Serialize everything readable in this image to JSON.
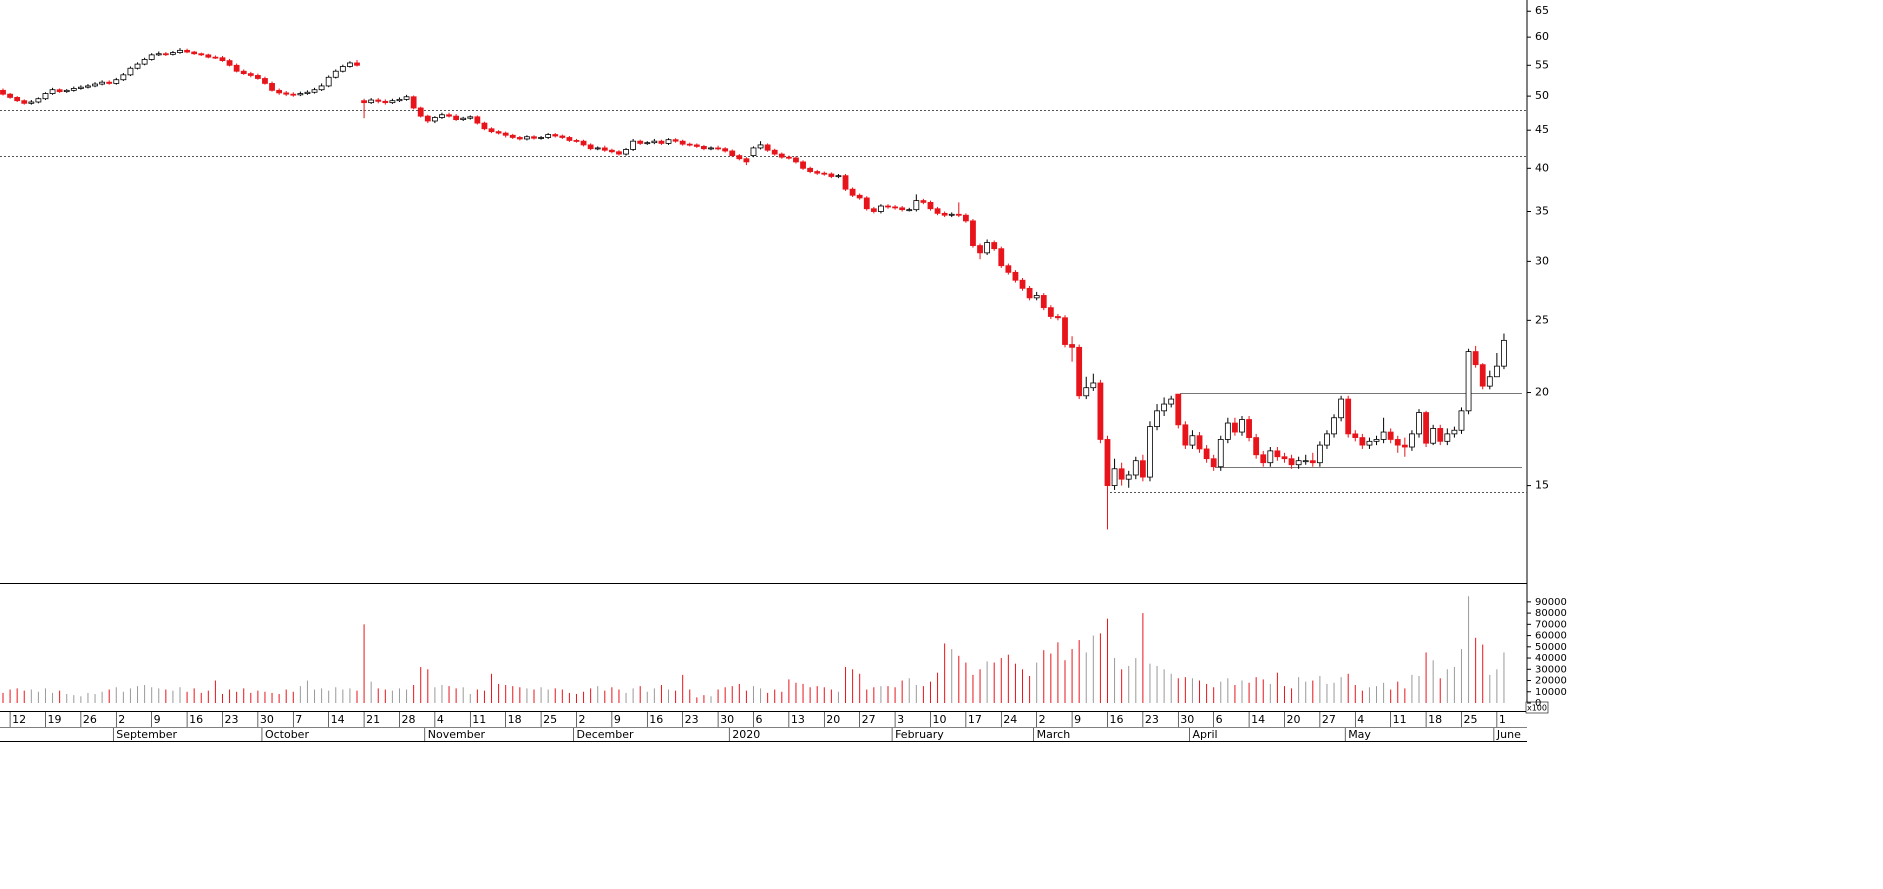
{
  "chart_data": {
    "type": "candlestick",
    "log_scale": true,
    "up_color": "#ffffff",
    "down_color": "#e8141b",
    "volume_up_color": "#9a9a9a",
    "ylim": [
      11.1,
      67.3
    ],
    "yticks": [
      15,
      20,
      25,
      30,
      35,
      40,
      45,
      50,
      55,
      60,
      65
    ],
    "volume_ylim": [
      0,
      105000
    ],
    "volume_yticks": [
      0,
      10000,
      20000,
      30000,
      40000,
      50000,
      60000,
      70000,
      80000,
      90000
    ],
    "volume_unit_label": "x100",
    "levels": [
      {
        "value": 47.9,
        "style": "dotted"
      },
      {
        "value": 41.6,
        "style": "dotted"
      },
      {
        "value": 14.7,
        "style": "dotted"
      },
      {
        "value": 19.95,
        "style": "solid"
      },
      {
        "value": 15.9,
        "style": "solid"
      }
    ],
    "categories": [
      null,
      "12",
      null,
      null,
      null,
      null,
      "19",
      null,
      null,
      null,
      null,
      "26",
      null,
      null,
      null,
      null,
      "2",
      null,
      null,
      null,
      null,
      "9",
      null,
      null,
      null,
      null,
      "16",
      null,
      null,
      null,
      null,
      "23",
      null,
      null,
      null,
      null,
      "30",
      null,
      null,
      null,
      null,
      "7",
      null,
      null,
      null,
      null,
      "14",
      null,
      null,
      null,
      null,
      "21",
      null,
      null,
      null,
      null,
      "28",
      null,
      null,
      null,
      null,
      "4",
      null,
      null,
      null,
      null,
      "11",
      null,
      null,
      null,
      null,
      "18",
      null,
      null,
      null,
      null,
      "25",
      null,
      null,
      null,
      null,
      "2",
      null,
      null,
      null,
      null,
      "9",
      null,
      null,
      null,
      null,
      "16",
      null,
      null,
      null,
      null,
      "23",
      null,
      null,
      null,
      null,
      "30",
      null,
      null,
      null,
      null,
      "6",
      null,
      null,
      null,
      null,
      "13",
      null,
      null,
      null,
      null,
      "20",
      null,
      null,
      null,
      null,
      "27",
      null,
      null,
      null,
      null,
      "3",
      null,
      null,
      null,
      null,
      "10",
      null,
      null,
      null,
      null,
      "17",
      null,
      null,
      null,
      null,
      "24",
      null,
      null,
      null,
      null,
      "2",
      null,
      null,
      null,
      null,
      "9",
      null,
      null,
      null,
      null,
      "16",
      null,
      null,
      null,
      null,
      "23",
      null,
      null,
      null,
      null,
      "30",
      null,
      null,
      null,
      null,
      "6",
      null,
      null,
      null,
      null,
      "14",
      null,
      null,
      null,
      null,
      "20",
      null,
      null,
      null,
      null,
      "27",
      null,
      null,
      null,
      null,
      "4",
      null,
      null,
      null,
      null,
      "11",
      null,
      null,
      null,
      null,
      "18",
      null,
      null,
      null,
      null,
      "25",
      null,
      null,
      null,
      null,
      "1",
      null
    ],
    "months": [
      null,
      null,
      null,
      null,
      null,
      null,
      null,
      null,
      null,
      null,
      null,
      null,
      null,
      null,
      null,
      null,
      "September",
      null,
      null,
      null,
      null,
      null,
      null,
      null,
      null,
      null,
      null,
      null,
      null,
      null,
      null,
      null,
      null,
      null,
      null,
      null,
      null,
      "October",
      null,
      null,
      null,
      null,
      null,
      null,
      null,
      null,
      null,
      null,
      null,
      null,
      null,
      null,
      null,
      null,
      null,
      null,
      null,
      null,
      null,
      null,
      "November",
      null,
      null,
      null,
      null,
      null,
      null,
      null,
      null,
      null,
      null,
      null,
      null,
      null,
      null,
      null,
      null,
      null,
      null,
      null,
      null,
      "December",
      null,
      null,
      null,
      null,
      null,
      null,
      null,
      null,
      null,
      null,
      null,
      null,
      null,
      null,
      null,
      null,
      null,
      null,
      null,
      null,
      null,
      "2020",
      null,
      null,
      null,
      null,
      null,
      null,
      null,
      null,
      null,
      null,
      null,
      null,
      null,
      null,
      null,
      null,
      null,
      null,
      null,
      null,
      null,
      null,
      "February",
      null,
      null,
      null,
      null,
      null,
      null,
      null,
      null,
      null,
      null,
      null,
      null,
      null,
      null,
      null,
      null,
      null,
      null,
      null,
      "March",
      null,
      null,
      null,
      null,
      null,
      null,
      null,
      null,
      null,
      null,
      null,
      null,
      null,
      null,
      null,
      null,
      null,
      null,
      null,
      null,
      null,
      "April",
      null,
      null,
      null,
      null,
      null,
      null,
      null,
      null,
      null,
      null,
      null,
      null,
      null,
      null,
      null,
      null,
      null,
      null,
      null,
      null,
      null,
      "May",
      null,
      null,
      null,
      null,
      null,
      null,
      null,
      null,
      null,
      null,
      null,
      null,
      null,
      null,
      null,
      null,
      null,
      null,
      null,
      null,
      "June",
      null
    ],
    "open": [
      50.9,
      50.3,
      49.8,
      49.3,
      48.9,
      49.1,
      49.6,
      50.4,
      51.0,
      50.7,
      50.9,
      51.2,
      51.4,
      51.6,
      51.9,
      52.2,
      52.0,
      52.6,
      53.4,
      54.5,
      55.2,
      56.0,
      56.8,
      57.0,
      56.9,
      57.2,
      57.6,
      57.3,
      57.0,
      56.8,
      56.4,
      56.3,
      55.8,
      55.0,
      54.0,
      53.6,
      53.3,
      52.8,
      52.0,
      50.9,
      50.5,
      50.3,
      50.2,
      50.4,
      50.6,
      51.0,
      51.6,
      53.0,
      54.0,
      54.8,
      55.4,
      49.3,
      49.0,
      49.4,
      49.2,
      49.0,
      49.3,
      49.5,
      49.9,
      48.2,
      47.0,
      46.3,
      46.8,
      47.2,
      47.0,
      46.5,
      46.7,
      46.9,
      46.0,
      45.2,
      44.8,
      44.6,
      44.3,
      44.0,
      43.8,
      44.1,
      43.9,
      44.0,
      44.4,
      44.2,
      44.0,
      43.6,
      43.5,
      43.0,
      42.5,
      42.6,
      42.3,
      42.1,
      41.8,
      42.4,
      43.5,
      43.2,
      43.3,
      43.5,
      43.2,
      43.7,
      43.5,
      43.1,
      43.0,
      42.8,
      42.5,
      42.6,
      42.5,
      42.2,
      41.6,
      41.2,
      41.6,
      42.6,
      43.0,
      42.3,
      41.8,
      41.4,
      41.3,
      40.8,
      40.0,
      39.6,
      39.4,
      39.3,
      39.0,
      39.1,
      37.5,
      36.8,
      36.5,
      35.3,
      35.0,
      35.6,
      35.5,
      35.4,
      35.2,
      35.2,
      36.2,
      36.0,
      35.3,
      34.8,
      34.6,
      34.7,
      34.6,
      34.0,
      31.5,
      30.8,
      31.8,
      31.2,
      29.6,
      29.0,
      28.3,
      27.6,
      26.8,
      27.0,
      26.0,
      25.3,
      25.2,
      23.2,
      23.0,
      19.8,
      20.3,
      20.6,
      17.3,
      15.0,
      15.8,
      15.3,
      15.5,
      16.2,
      15.4,
      18.0,
      18.9,
      19.3,
      19.9,
      18.1,
      17.0,
      17.5,
      16.8,
      16.3,
      15.9,
      17.3,
      18.2,
      17.7,
      18.4,
      17.4,
      16.5,
      16.1,
      16.7,
      16.4,
      16.3,
      16.0,
      16.2,
      16.2,
      16.1,
      17.0,
      17.6,
      18.5,
      19.6,
      17.6,
      17.4,
      17.0,
      17.2,
      17.3,
      17.7,
      17.3,
      17.0,
      16.9,
      17.6,
      18.8,
      17.1,
      17.9,
      17.2,
      17.6,
      17.8,
      18.9,
      22.7,
      21.8,
      20.4,
      21.0,
      21.7
    ],
    "high": [
      51.2,
      50.5,
      50.0,
      49.5,
      49.4,
      49.8,
      50.6,
      51.3,
      51.2,
      51.1,
      51.5,
      51.7,
      51.9,
      52.2,
      52.5,
      52.5,
      52.9,
      53.7,
      54.8,
      55.5,
      56.3,
      57.1,
      57.4,
      57.3,
      57.5,
      58.0,
      57.9,
      57.5,
      57.2,
      57.0,
      56.7,
      56.6,
      56.1,
      55.3,
      54.3,
      53.9,
      53.6,
      53.1,
      52.3,
      51.2,
      50.8,
      50.6,
      50.7,
      50.9,
      51.3,
      52.0,
      53.3,
      54.3,
      55.1,
      55.7,
      55.9,
      49.6,
      49.7,
      49.7,
      49.5,
      49.6,
      49.8,
      50.2,
      50.1,
      48.4,
      47.2,
      47.0,
      47.5,
      47.5,
      47.3,
      46.9,
      47.1,
      47.1,
      46.2,
      45.4,
      45.0,
      44.8,
      44.5,
      44.2,
      44.3,
      44.3,
      44.2,
      44.6,
      44.6,
      44.4,
      44.2,
      43.8,
      43.7,
      43.2,
      42.8,
      42.9,
      42.5,
      42.3,
      42.6,
      43.8,
      43.7,
      43.5,
      43.8,
      43.7,
      43.9,
      43.9,
      43.7,
      43.3,
      43.2,
      43.0,
      42.8,
      42.9,
      42.7,
      42.4,
      41.8,
      41.4,
      42.8,
      43.5,
      43.2,
      42.5,
      42.0,
      41.6,
      41.5,
      41.0,
      40.2,
      39.8,
      39.6,
      39.5,
      39.3,
      39.3,
      37.7,
      37.0,
      36.7,
      35.5,
      35.8,
      35.8,
      35.7,
      35.6,
      35.4,
      36.9,
      36.4,
      36.2,
      35.5,
      35.0,
      34.9,
      36.0,
      34.8,
      34.2,
      31.7,
      32.1,
      32.0,
      31.4,
      29.8,
      29.2,
      28.5,
      27.8,
      27.3,
      27.2,
      26.2,
      25.5,
      25.4,
      23.8,
      23.2,
      21.0,
      21.2,
      20.8,
      17.5,
      16.3,
      16.1,
      15.7,
      16.4,
      16.5,
      18.3,
      19.3,
      19.7,
      19.8,
      19.9,
      18.3,
      17.8,
      17.7,
      17.0,
      16.5,
      17.5,
      18.5,
      18.5,
      18.6,
      18.6,
      17.6,
      16.7,
      16.9,
      16.9,
      16.6,
      16.5,
      16.4,
      16.5,
      16.6,
      17.2,
      17.8,
      18.7,
      19.8,
      19.8,
      17.8,
      17.6,
      17.4,
      17.5,
      18.5,
      17.9,
      17.5,
      17.4,
      17.8,
      19.0,
      18.9,
      18.1,
      18.1,
      17.9,
      18.0,
      19.1,
      22.9,
      23.1,
      21.9,
      21.4,
      22.6,
      24.0
    ],
    "low": [
      50.1,
      49.6,
      49.1,
      48.7,
      48.7,
      48.9,
      49.4,
      50.2,
      50.5,
      50.5,
      50.7,
      51.0,
      51.2,
      51.4,
      51.7,
      51.8,
      51.8,
      52.4,
      53.2,
      54.3,
      55.0,
      55.8,
      56.6,
      56.6,
      56.7,
      57.0,
      57.1,
      56.8,
      56.6,
      56.2,
      56.1,
      55.6,
      54.8,
      53.8,
      53.4,
      53.0,
      52.6,
      51.8,
      50.7,
      50.2,
      50.0,
      49.9,
      50.0,
      50.2,
      50.4,
      50.8,
      51.4,
      52.8,
      53.8,
      54.6,
      54.8,
      46.7,
      48.8,
      48.9,
      48.7,
      48.8,
      49.1,
      49.3,
      48.0,
      46.8,
      46.0,
      46.0,
      46.6,
      46.8,
      46.3,
      46.3,
      46.5,
      45.8,
      45.0,
      44.6,
      44.4,
      44.0,
      43.8,
      43.6,
      43.6,
      43.7,
      43.7,
      43.8,
      44.0,
      43.8,
      43.4,
      43.3,
      42.8,
      42.3,
      42.3,
      42.1,
      41.9,
      41.6,
      41.6,
      42.2,
      43.0,
      43.0,
      43.1,
      43.0,
      43.0,
      43.3,
      42.9,
      42.8,
      42.6,
      42.3,
      42.3,
      42.3,
      42.0,
      41.4,
      41.0,
      40.4,
      41.4,
      42.4,
      42.1,
      41.6,
      41.2,
      41.1,
      40.6,
      39.8,
      39.4,
      39.2,
      39.1,
      38.8,
      38.8,
      37.3,
      36.6,
      36.3,
      35.1,
      34.8,
      34.8,
      35.3,
      35.2,
      35.0,
      35.0,
      35.0,
      35.8,
      35.1,
      34.6,
      34.4,
      34.4,
      34.4,
      33.8,
      31.3,
      30.2,
      30.6,
      31.0,
      29.4,
      28.8,
      28.1,
      27.4,
      26.6,
      26.6,
      25.8,
      25.1,
      25.0,
      23.0,
      22.0,
      19.6,
      19.6,
      20.1,
      17.1,
      13.1,
      14.8,
      15.0,
      14.9,
      15.3,
      15.2,
      15.2,
      17.8,
      18.6,
      19.1,
      17.9,
      16.8,
      16.8,
      16.6,
      16.1,
      15.7,
      15.7,
      17.1,
      17.5,
      17.5,
      17.2,
      16.3,
      15.9,
      15.9,
      16.2,
      16.1,
      15.8,
      15.8,
      16.0,
      15.9,
      15.9,
      16.8,
      17.4,
      18.3,
      17.4,
      17.2,
      16.8,
      16.8,
      17.0,
      17.1,
      17.1,
      16.6,
      16.4,
      16.7,
      17.4,
      16.9,
      17.0,
      17.0,
      17.0,
      17.4,
      17.6,
      18.7,
      21.6,
      20.2,
      20.2,
      21.0,
      21.5
    ],
    "close": [
      50.3,
      49.8,
      49.3,
      48.9,
      49.1,
      49.6,
      50.4,
      51.0,
      50.7,
      50.9,
      51.2,
      51.4,
      51.6,
      51.9,
      52.2,
      52.0,
      52.6,
      53.4,
      54.5,
      55.2,
      56.0,
      56.8,
      57.0,
      56.9,
      57.2,
      57.6,
      57.3,
      57.0,
      56.8,
      56.4,
      56.3,
      55.8,
      55.0,
      54.0,
      53.6,
      53.3,
      52.8,
      52.0,
      50.9,
      50.5,
      50.3,
      50.2,
      50.4,
      50.6,
      51.0,
      51.6,
      53.0,
      54.0,
      54.8,
      55.4,
      55.0,
      49.0,
      49.4,
      49.2,
      49.0,
      49.3,
      49.5,
      49.9,
      48.2,
      47.0,
      46.3,
      46.8,
      47.2,
      47.0,
      46.5,
      46.7,
      46.9,
      46.0,
      45.2,
      44.8,
      44.6,
      44.3,
      44.0,
      43.8,
      44.1,
      43.9,
      44.0,
      44.4,
      44.2,
      44.0,
      43.6,
      43.5,
      43.0,
      42.5,
      42.6,
      42.3,
      42.1,
      41.8,
      42.4,
      43.5,
      43.2,
      43.3,
      43.5,
      43.2,
      43.7,
      43.5,
      43.1,
      43.0,
      42.8,
      42.5,
      42.6,
      42.5,
      42.2,
      41.6,
      41.2,
      40.8,
      42.6,
      43.0,
      42.3,
      41.8,
      41.4,
      41.3,
      40.8,
      40.0,
      39.6,
      39.4,
      39.3,
      39.0,
      39.1,
      37.5,
      36.8,
      36.5,
      35.3,
      35.0,
      35.6,
      35.5,
      35.4,
      35.2,
      35.2,
      36.2,
      36.0,
      35.3,
      34.8,
      34.6,
      34.7,
      34.6,
      34.0,
      31.5,
      30.8,
      31.8,
      31.2,
      29.6,
      29.0,
      28.3,
      27.6,
      26.8,
      27.0,
      26.0,
      25.3,
      25.2,
      23.2,
      23.0,
      19.8,
      20.3,
      20.6,
      17.3,
      15.0,
      15.8,
      15.3,
      15.5,
      16.2,
      15.4,
      18.0,
      18.9,
      19.3,
      19.6,
      18.1,
      17.0,
      17.5,
      16.8,
      16.3,
      15.9,
      17.3,
      18.2,
      17.7,
      18.4,
      17.4,
      16.5,
      16.1,
      16.7,
      16.4,
      16.3,
      16.0,
      16.2,
      16.2,
      16.1,
      17.0,
      17.6,
      18.5,
      19.6,
      17.6,
      17.4,
      17.0,
      17.2,
      17.3,
      17.7,
      17.3,
      17.0,
      16.9,
      17.6,
      18.8,
      17.1,
      17.9,
      17.2,
      17.6,
      17.8,
      18.9,
      22.7,
      21.8,
      20.4,
      21.0,
      21.7,
      23.5
    ],
    "volume": [
      9000,
      12000,
      13000,
      11000,
      12000,
      10000,
      13000,
      9000,
      11000,
      8000,
      7000,
      6000,
      9000,
      8000,
      10000,
      12000,
      14000,
      10000,
      13000,
      15000,
      16000,
      14000,
      13000,
      12000,
      11000,
      14000,
      10000,
      13000,
      9000,
      11000,
      20000,
      8000,
      12000,
      10000,
      13000,
      9000,
      11000,
      10000,
      9000,
      8000,
      12000,
      10000,
      15000,
      20000,
      12000,
      13000,
      11000,
      14000,
      12000,
      13000,
      11000,
      70000,
      19000,
      13000,
      12000,
      11000,
      13000,
      12000,
      16000,
      32000,
      30000,
      14000,
      16000,
      15000,
      13000,
      14000,
      8000,
      12000,
      11000,
      26000,
      17000,
      16000,
      15000,
      14000,
      13000,
      12000,
      14000,
      12000,
      13000,
      12000,
      9000,
      8000,
      10000,
      13000,
      15000,
      11000,
      14000,
      12000,
      9000,
      13000,
      15000,
      10000,
      13000,
      16000,
      12000,
      11000,
      25000,
      12000,
      5000,
      7000,
      6000,
      12000,
      14000,
      15000,
      17000,
      11000,
      15000,
      13000,
      9000,
      12000,
      10000,
      21000,
      18000,
      17000,
      14000,
      15000,
      14000,
      12000,
      10000,
      32000,
      30000,
      26000,
      12000,
      14000,
      15000,
      15000,
      14000,
      20000,
      22000,
      16000,
      15000,
      19000,
      27000,
      53000,
      48000,
      42000,
      36000,
      25000,
      30000,
      37000,
      36000,
      40000,
      43000,
      35000,
      30000,
      24000,
      36000,
      47000,
      44000,
      54000,
      38000,
      48000,
      56000,
      45000,
      60000,
      62000,
      75000,
      40000,
      30000,
      33000,
      40000,
      80000,
      35000,
      33000,
      30000,
      26000,
      22000,
      23000,
      22000,
      20000,
      17000,
      14000,
      19000,
      22000,
      16000,
      20000,
      18000,
      23000,
      21000,
      17000,
      27000,
      15000,
      13000,
      23000,
      19000,
      20000,
      24000,
      17000,
      18000,
      23000,
      26000,
      16000,
      11000,
      14000,
      15000,
      18000,
      12000,
      19000,
      13000,
      25000,
      24000,
      45000,
      38000,
      22000,
      30000,
      32000,
      48000,
      95000,
      58000,
      52000,
      25000,
      30000,
      45000
    ]
  }
}
